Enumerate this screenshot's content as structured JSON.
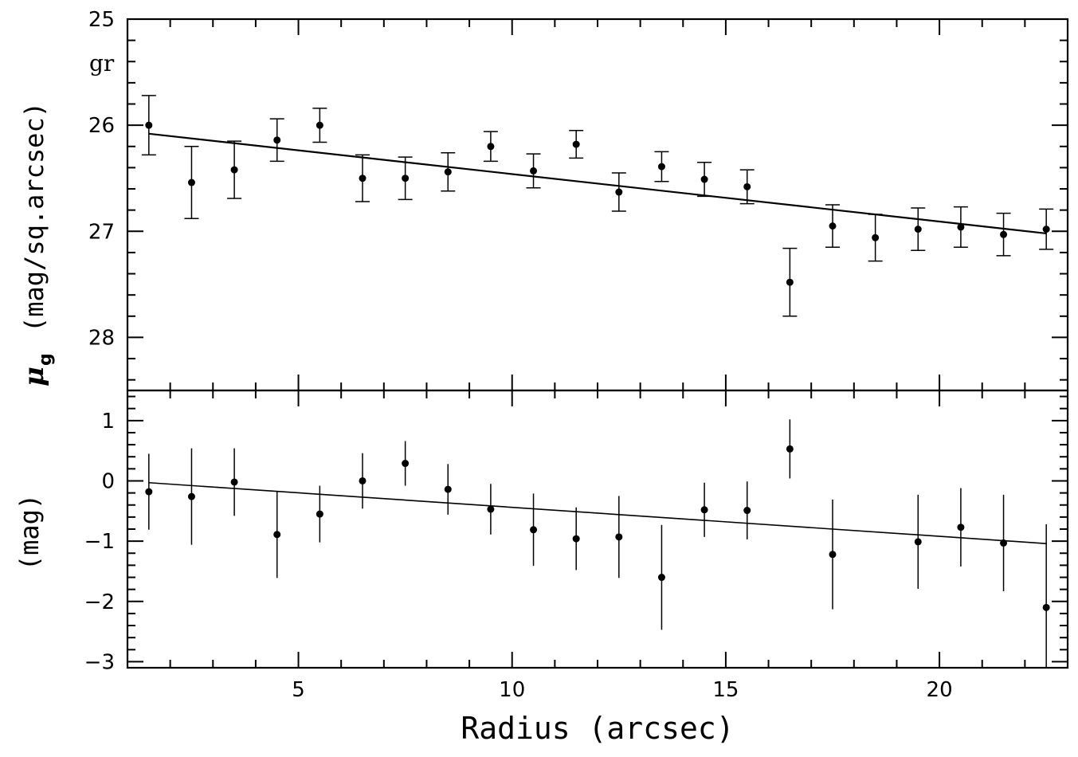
{
  "chart_data": [
    {
      "type": "scatter",
      "panel": "top",
      "ylabel_symbol": "μ",
      "ylabel_subscript": "g",
      "ylabel_text": "(mag/sq.arcsec)",
      "annotation": "gr",
      "xlim": [
        1,
        23
      ],
      "ylim": [
        28.5,
        25
      ],
      "y_inverted": true,
      "y_ticks": [
        25,
        26,
        27,
        28
      ],
      "series": [
        {
          "x": [
            1.5,
            2.5,
            3.5,
            4.5,
            5.5,
            6.5,
            7.5,
            8.5,
            9.5,
            10.5,
            11.5,
            12.5,
            13.5,
            14.5,
            15.5,
            16.5,
            17.5,
            18.5,
            19.5,
            20.5,
            21.5,
            22.5
          ],
          "y": [
            26.0,
            26.54,
            26.42,
            26.14,
            26.0,
            26.5,
            26.5,
            26.44,
            26.2,
            26.43,
            26.18,
            26.63,
            26.39,
            26.51,
            26.58,
            27.48,
            26.95,
            27.06,
            26.98,
            26.96,
            27.03,
            26.98
          ],
          "yerr": [
            0.28,
            0.34,
            0.27,
            0.2,
            0.16,
            0.22,
            0.2,
            0.18,
            0.14,
            0.16,
            0.13,
            0.18,
            0.14,
            0.16,
            0.16,
            0.32,
            0.2,
            0.22,
            0.2,
            0.19,
            0.2,
            0.19
          ]
        }
      ],
      "fit_line": {
        "x": [
          1.5,
          22.5
        ],
        "y": [
          26.08,
          27.02
        ]
      }
    },
    {
      "type": "scatter",
      "panel": "bottom",
      "ylabel": "(mag)",
      "xlabel": "Radius (arcsec)",
      "xlim": [
        1,
        23
      ],
      "ylim": [
        -3.1,
        1.5
      ],
      "x_ticks": [
        5,
        10,
        15,
        20
      ],
      "y_ticks": [
        1,
        0,
        -1,
        -2,
        -3
      ],
      "y_tick_labels": [
        "1",
        "0",
        "−1",
        "−2",
        "−3"
      ],
      "series": [
        {
          "x": [
            1.5,
            2.5,
            3.5,
            4.5,
            5.5,
            6.5,
            7.5,
            8.5,
            9.5,
            10.5,
            11.5,
            12.5,
            13.5,
            14.5,
            15.5,
            16.5,
            17.5,
            19.5,
            20.5,
            21.5,
            22.5
          ],
          "y": [
            -0.18,
            -0.26,
            -0.02,
            -0.89,
            -0.55,
            0.0,
            0.29,
            -0.14,
            -0.47,
            -0.81,
            -0.96,
            -0.93,
            -1.6,
            -0.48,
            -0.49,
            0.53,
            -1.22,
            -1.01,
            -0.77,
            -1.03,
            -2.1
          ],
          "yerr": [
            0.63,
            0.8,
            0.56,
            0.72,
            0.47,
            0.46,
            0.37,
            0.42,
            0.42,
            0.6,
            0.52,
            0.68,
            0.87,
            0.45,
            0.48,
            0.49,
            0.91,
            0.78,
            0.65,
            0.8,
            1.38
          ]
        }
      ],
      "fit_line": {
        "x": [
          1.5,
          22.5
        ],
        "y": [
          -0.03,
          -1.04
        ]
      }
    }
  ]
}
